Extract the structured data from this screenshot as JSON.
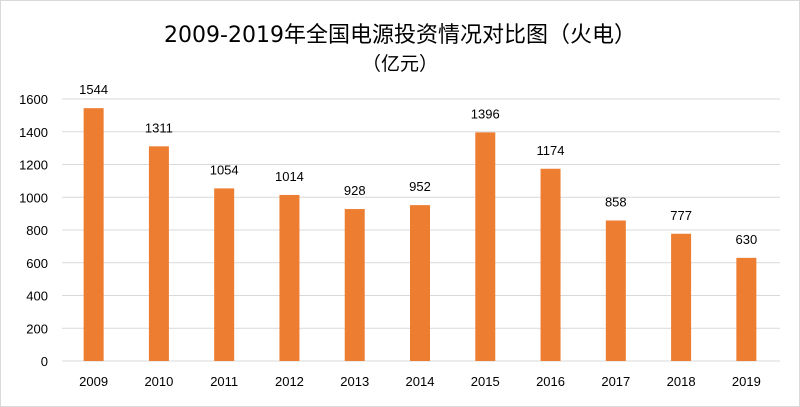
{
  "chart_data": {
    "type": "bar",
    "title": "2009-2019年全国电源投资情况对比图（火电）",
    "subtitle": "（亿元）",
    "categories": [
      "2009",
      "2010",
      "2011",
      "2012",
      "2013",
      "2014",
      "2015",
      "2016",
      "2017",
      "2018",
      "2019"
    ],
    "values": [
      1544,
      1311,
      1054,
      1014,
      928,
      952,
      1396,
      1174,
      858,
      777,
      630
    ],
    "ylim": [
      0,
      1600
    ],
    "yticks": [
      0,
      200,
      400,
      600,
      800,
      1000,
      1200,
      1400,
      1600
    ],
    "grid": true,
    "data_labels": true,
    "bar_color": "#ED7D31",
    "grid_color": "#D9D9D9"
  }
}
